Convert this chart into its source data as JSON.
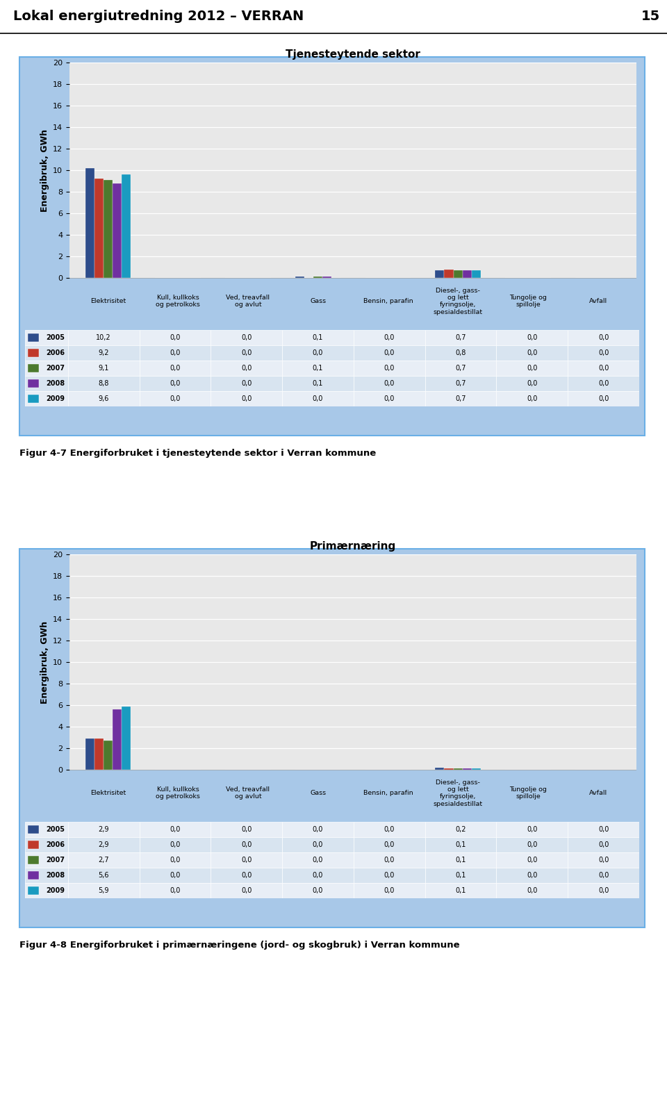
{
  "page_title": "Lokal energiutredning 2012 – VERRAN",
  "page_number": "15",
  "chart1": {
    "title": "Tjenesteytende sektor",
    "ylabel": "Energibruk, GWh",
    "ylim": [
      0,
      20
    ],
    "yticks": [
      0,
      2,
      4,
      6,
      8,
      10,
      12,
      14,
      16,
      18,
      20
    ],
    "categories": [
      "Elektrisitet",
      "Kull, kullkoks\nog petrolkoks",
      "Ved, treavfall\nog avlut",
      "Gass",
      "Bensin, parafin",
      "Diesel-, gass-\nog lett\nfyringsolje,\nspesialdestillat",
      "Tungolje og\nspillolje",
      "Avfall"
    ],
    "years": [
      2005,
      2006,
      2007,
      2008,
      2009
    ],
    "bar_colors": [
      "#2E4D8B",
      "#C0392B",
      "#4D7A2E",
      "#7030A0",
      "#1A9BC0"
    ],
    "data": {
      "2005": [
        10.2,
        0.0,
        0.0,
        0.1,
        0.0,
        0.7,
        0.0,
        0.0
      ],
      "2006": [
        9.2,
        0.0,
        0.0,
        0.0,
        0.0,
        0.8,
        0.0,
        0.0
      ],
      "2007": [
        9.1,
        0.0,
        0.0,
        0.1,
        0.0,
        0.7,
        0.0,
        0.0
      ],
      "2008": [
        8.8,
        0.0,
        0.0,
        0.1,
        0.0,
        0.7,
        0.0,
        0.0
      ],
      "2009": [
        9.6,
        0.0,
        0.0,
        0.0,
        0.0,
        0.7,
        0.0,
        0.0
      ]
    },
    "caption": "Figur 4-7 Energiforbruket i tjenesteytende sektor i Verran kommune"
  },
  "chart2": {
    "title": "Primærnæring",
    "ylabel": "Energibruk, GWh",
    "ylim": [
      0,
      20
    ],
    "yticks": [
      0,
      2,
      4,
      6,
      8,
      10,
      12,
      14,
      16,
      18,
      20
    ],
    "categories": [
      "Elektrisitet",
      "Kull, kullkoks\nog petrolkoks",
      "Ved, treavfall\nog avlut",
      "Gass",
      "Bensin, parafin",
      "Diesel-, gass-\nog lett\nfyringsolje,\nspesialdestillat",
      "Tungolje og\nspillolje",
      "Avfall"
    ],
    "years": [
      2005,
      2006,
      2007,
      2008,
      2009
    ],
    "bar_colors": [
      "#2E4D8B",
      "#C0392B",
      "#4D7A2E",
      "#7030A0",
      "#1A9BC0"
    ],
    "data": {
      "2005": [
        2.9,
        0.0,
        0.0,
        0.0,
        0.0,
        0.2,
        0.0,
        0.0
      ],
      "2006": [
        2.9,
        0.0,
        0.0,
        0.0,
        0.0,
        0.1,
        0.0,
        0.0
      ],
      "2007": [
        2.7,
        0.0,
        0.0,
        0.0,
        0.0,
        0.1,
        0.0,
        0.0
      ],
      "2008": [
        5.6,
        0.0,
        0.0,
        0.0,
        0.0,
        0.1,
        0.0,
        0.0
      ],
      "2009": [
        5.9,
        0.0,
        0.0,
        0.0,
        0.0,
        0.1,
        0.0,
        0.0
      ]
    },
    "caption": "Figur 4-8 Energiforbruket i primærnæringene (jord- og skogbruk) i Verran kommune"
  },
  "bg_outer": "#A8C8E8",
  "bg_chart": "#E8E8E8",
  "bg_table_header": "#C0D0E8",
  "bg_table_row1": "#E8EEF6",
  "bg_table_row2": "#D8E4F0"
}
